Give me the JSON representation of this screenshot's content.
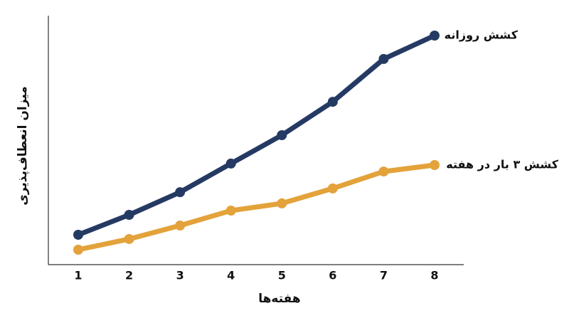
{
  "chart_data": {
    "type": "line",
    "x_label": "هفته‌ها",
    "y_label": "میزان انعطاف‌پذیری",
    "categories": [
      "1",
      "2",
      "3",
      "4",
      "5",
      "6",
      "7",
      "8"
    ],
    "ylim": [
      0,
      100
    ],
    "series": [
      {
        "name": "کشش روزانه",
        "color": "#253a63",
        "values": [
          12,
          20,
          29.1,
          40.6,
          52,
          65.4,
          82.6,
          92
        ]
      },
      {
        "name": "کشش ۳ بار در هفته",
        "color": "#e3a23a",
        "values": [
          6,
          10.3,
          15.7,
          21.7,
          24.6,
          30.6,
          37.4,
          40
        ]
      }
    ]
  }
}
